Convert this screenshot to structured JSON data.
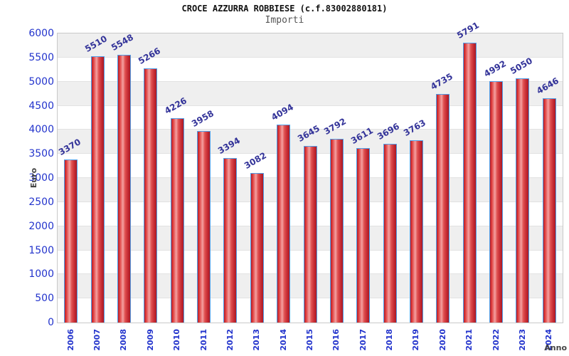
{
  "chart_data": {
    "type": "bar",
    "title": "CROCE AZZURRA ROBBIESE (c.f.83002880181)",
    "subtitle": "Importi",
    "xlabel": "Anno",
    "ylabel": "Euro",
    "categories": [
      "2006",
      "2007",
      "2008",
      "2009",
      "2010",
      "2011",
      "2012",
      "2013",
      "2014",
      "2015",
      "2016",
      "2017",
      "2018",
      "2019",
      "2020",
      "2021",
      "2022",
      "2023",
      "2024"
    ],
    "values": [
      3370,
      5510,
      5548,
      5266,
      4226,
      3958,
      3394,
      3082,
      4094,
      3645,
      3792,
      3611,
      3696,
      3763,
      4735,
      5791,
      4992,
      5050,
      4646
    ],
    "ylim": [
      0,
      6000
    ],
    "ytick_step": 500,
    "yticks": [
      0,
      500,
      1000,
      1500,
      2000,
      2500,
      3000,
      3500,
      4000,
      4500,
      5000,
      5500,
      6000
    ],
    "grid": "horizontal-bands",
    "legend": "none",
    "colors": {
      "bar_fill_dark": "#b51d28",
      "bar_fill_highlight": "#f4a0a0",
      "bar_border": "#4f9ee8",
      "tick_label_blue": "#2233cc",
      "value_label_navy": "#333399",
      "band_gray": "#efefef",
      "band_white": "#ffffff",
      "gridline": "#e2e2e2",
      "plot_border": "#c9c9c9",
      "axis_title_gray": "#444444",
      "title_black": "#111111",
      "subtitle_gray": "#555555"
    }
  }
}
